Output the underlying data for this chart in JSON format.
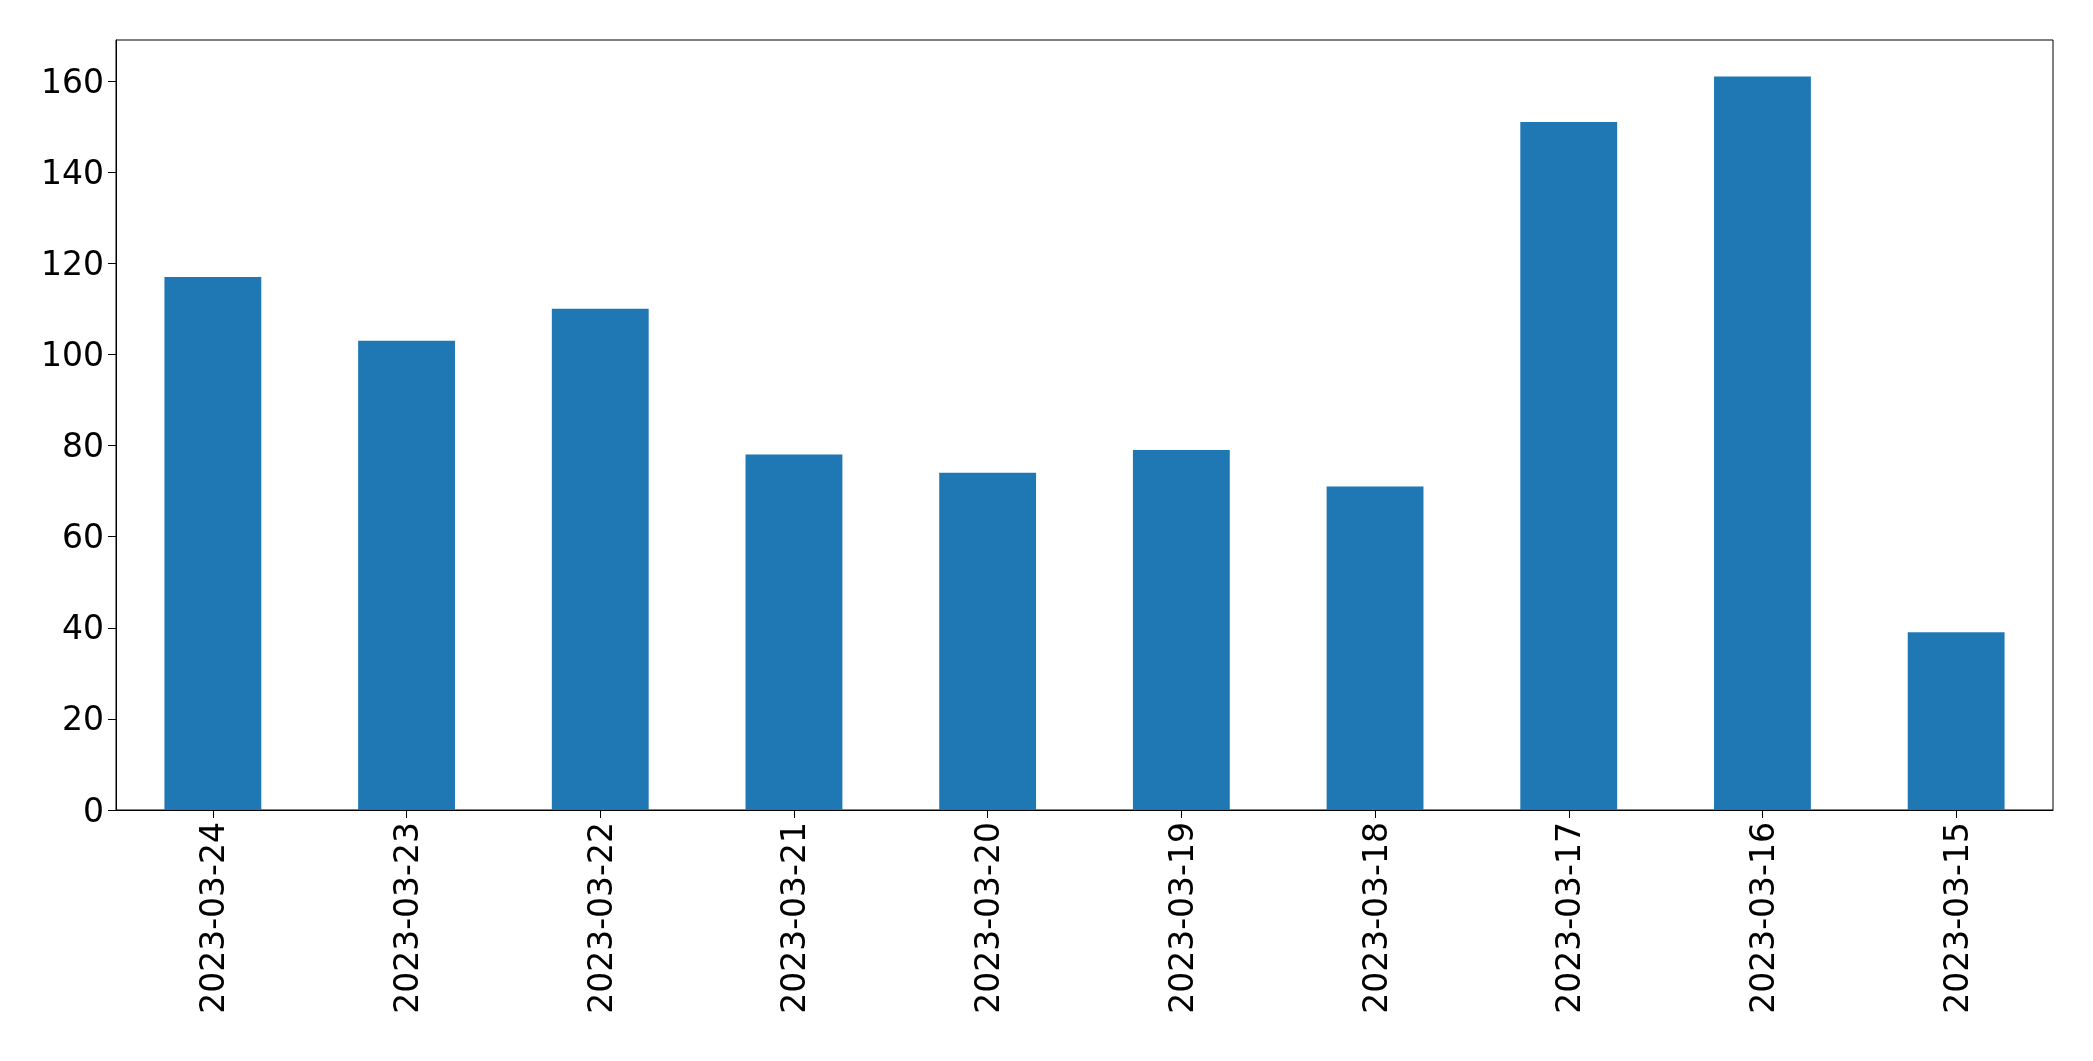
{
  "chart_data": {
    "type": "bar",
    "categories": [
      "2023-03-24",
      "2023-03-23",
      "2023-03-22",
      "2023-03-21",
      "2023-03-20",
      "2023-03-19",
      "2023-03-18",
      "2023-03-17",
      "2023-03-16",
      "2023-03-15"
    ],
    "values": [
      117,
      103,
      110,
      78,
      74,
      79,
      71,
      151,
      161,
      39
    ],
    "color": "#1f77b4",
    "ylim": [
      0,
      169
    ],
    "yticks": [
      0,
      20,
      40,
      60,
      80,
      100,
      120,
      140,
      160
    ],
    "grid": false
  }
}
